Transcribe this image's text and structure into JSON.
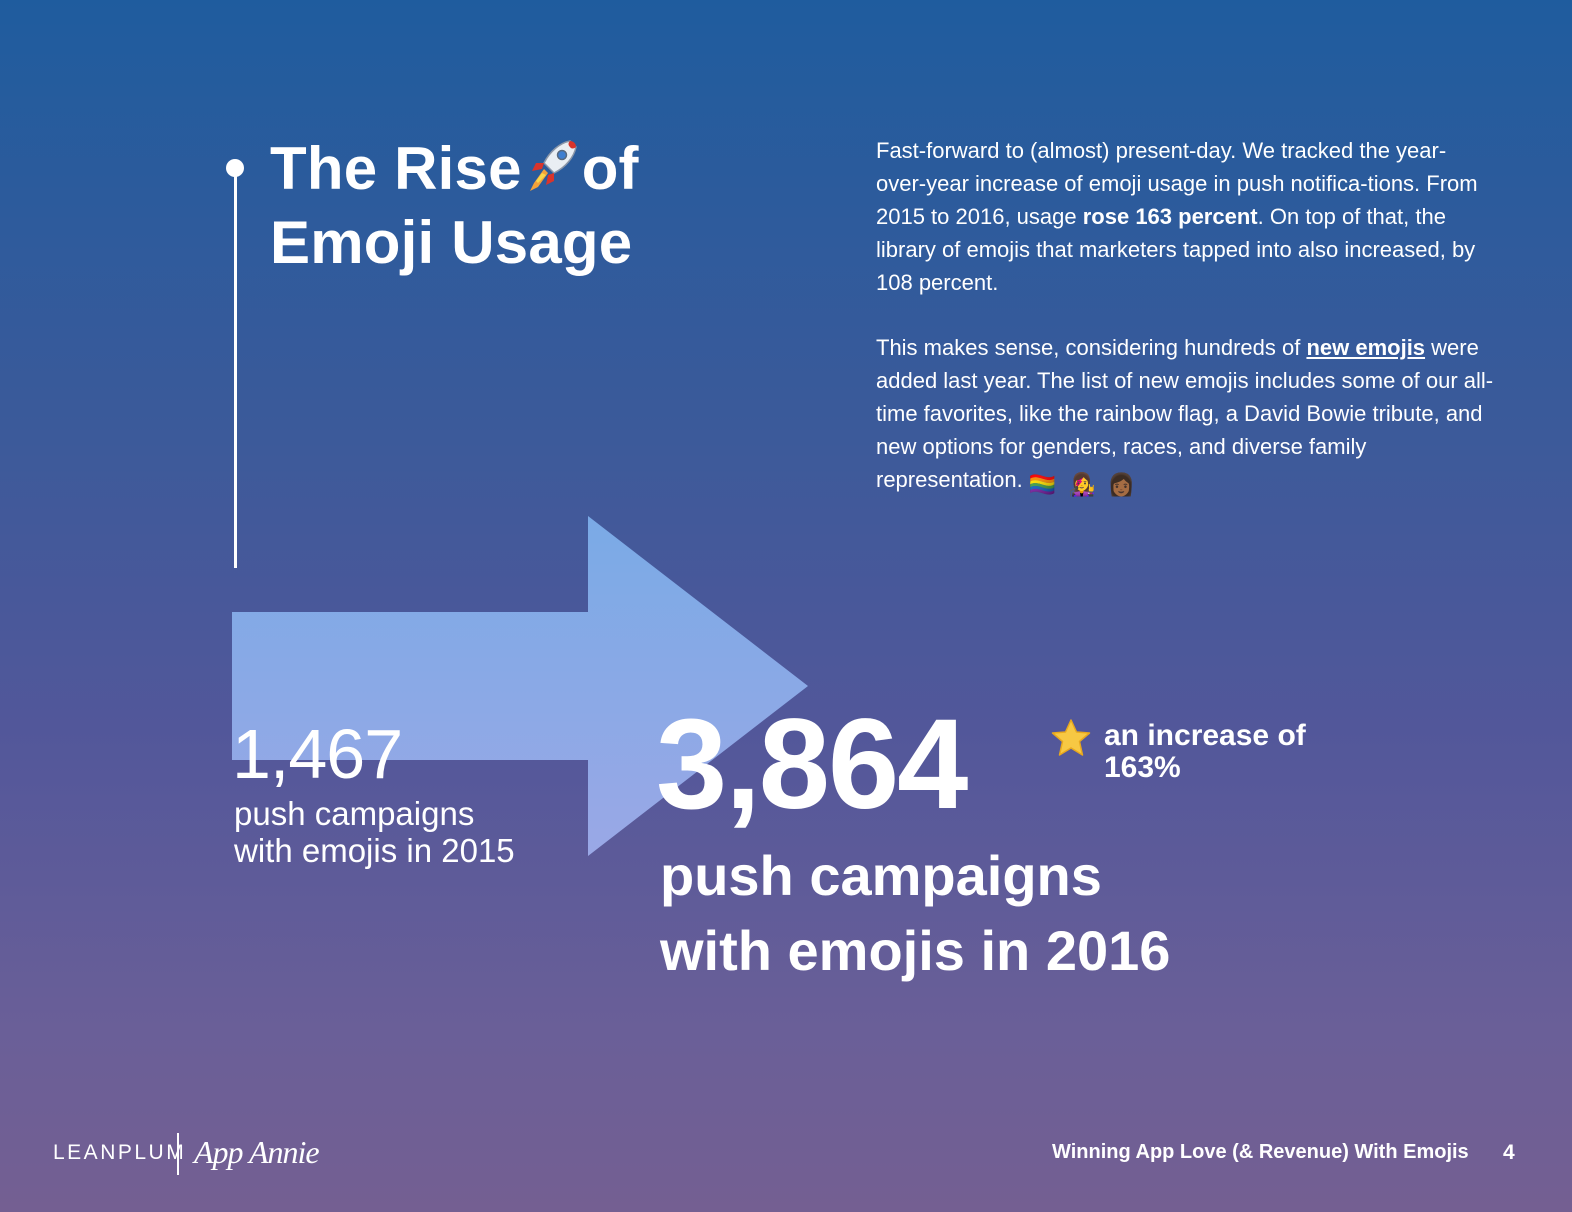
{
  "title": {
    "part1": "The Rise",
    "part2": "of",
    "line2": "Emoji Usage"
  },
  "body": {
    "p1_a": "Fast-forward to (almost) present-day. We tracked the year-over-year increase of emoji usage in push notifica-tions. From 2015 to 2016, usage ",
    "p1_bold": "rose 163 percent",
    "p1_b": ". On top of that, the library of emojis that marketers tapped into also increased, by 108 percent.",
    "p2_a": "This makes sense, considering hundreds of ",
    "p2_link": "new emojis",
    "p2_b": " were added last year. The list of new emojis includes some of our all-time favorites, like the rainbow flag, a David Bowie tribute, and new options for genders, races, and diverse family representation.",
    "emojis": [
      "🏳️‍🌈",
      "👩‍🎤",
      "👩🏾"
    ]
  },
  "stat_2015": {
    "value": "1,467",
    "label": "push campaigns with emojis in 2015"
  },
  "stat_2016": {
    "value": "3,864",
    "label": "push campaigns with emojis in 2016"
  },
  "increase": {
    "icon": "star-icon",
    "text": "an increase of 163%"
  },
  "footer": {
    "logo_left": "LEANPLUM",
    "logo_right": "App Annie",
    "doc_title": "Winning App Love (& Revenue) With Emojis",
    "page": "4"
  },
  "colors": {
    "arrow_top": "#7aaae6",
    "arrow_bottom": "#9aa8e6",
    "star": "#f7c843"
  }
}
